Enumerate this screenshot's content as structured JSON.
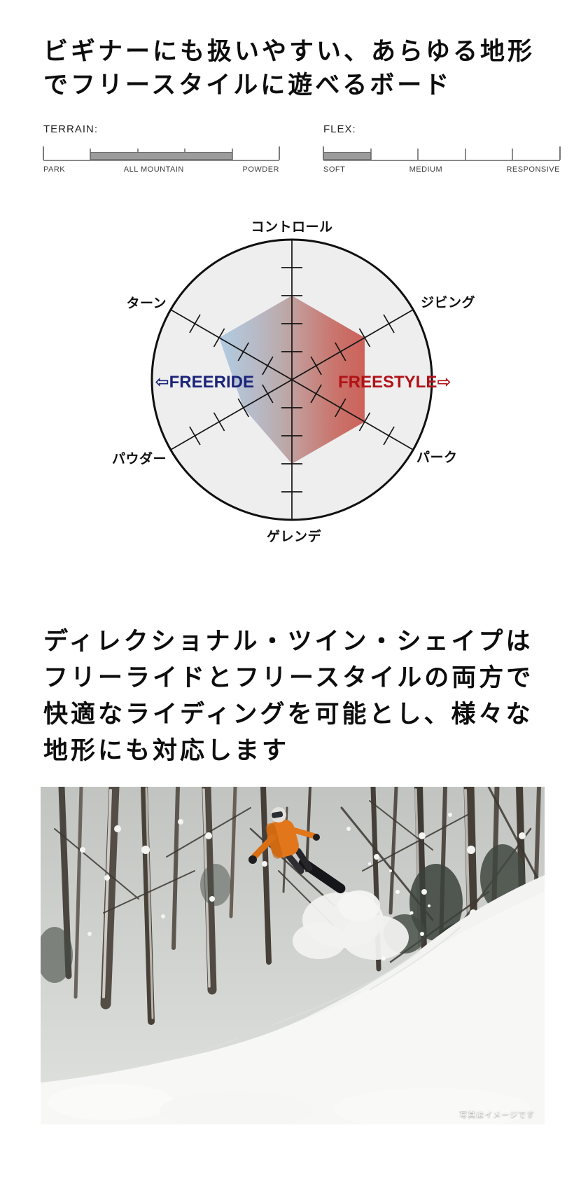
{
  "headings": {
    "intro_lines": [
      "ビギナーにも扱いやすい、あらゆる地形",
      "でフリースタイルに遊べるボード"
    ],
    "shape_lines": [
      "ディレクショナル・ツイン・シェイプは",
      "フリーライドとフリースタイルの両方で",
      "快適なライディングを可能とし、様々な",
      "地形にも対応します"
    ]
  },
  "chart_data": [
    {
      "type": "meter",
      "title": "TERRAIN:",
      "scale_labels": [
        "PARK",
        "ALL MOUNTAIN",
        "POWDER"
      ],
      "segments": 5,
      "filled_from": 1,
      "filled_to": 4,
      "bar_color": "#9c9c9c"
    },
    {
      "type": "meter",
      "title": "FLEX:",
      "scale_labels": [
        "SOFT",
        "MEDIUM",
        "RESPONSIVE"
      ],
      "segments": 5,
      "filled_from": 0,
      "filled_to": 1,
      "bar_color": "#9c9c9c"
    },
    {
      "type": "radar",
      "axes": [
        "コントロール",
        "ジビング",
        "パーク",
        "ゲレンデ",
        "パウダー",
        "ターン"
      ],
      "values": [
        3,
        3,
        3,
        3,
        2,
        3
      ],
      "scale_max": 5,
      "left_label": "FREERIDE",
      "right_label": "FREESTYLE",
      "left_arrow": "⇦",
      "right_arrow": "⇨",
      "left_color": "#1b2478",
      "right_color": "#b11218",
      "circle_fill": "#eeeeef",
      "gradient": [
        "#a8cee9",
        "#b2b3c0",
        "#b6a2a2",
        "#bf8d8a",
        "#c5685f",
        "#ca4a41"
      ]
    }
  ],
  "photo": {
    "caption": "写真はイメージです"
  }
}
